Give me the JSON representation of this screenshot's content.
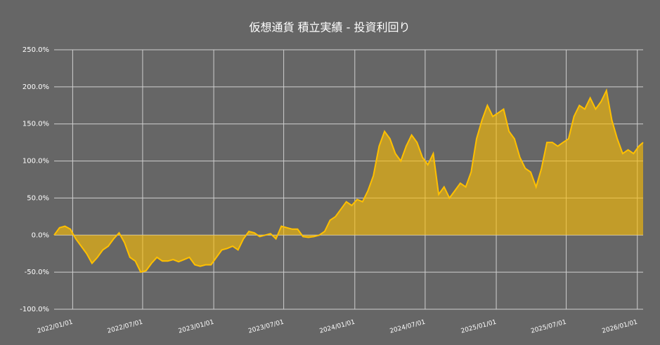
{
  "chart_data": {
    "type": "area",
    "title": "仮想通貨 積立実績 - 投資利回り",
    "color": "#ffc000",
    "grid": true,
    "x": [
      "2021/11/14",
      "2021/11/28",
      "2021/12/12",
      "2021/12/26",
      "2022/01/09",
      "2022/01/23",
      "2022/02/06",
      "2022/02/20",
      "2022/03/06",
      "2022/03/20",
      "2022/04/03",
      "2022/04/17",
      "2022/05/01",
      "2022/05/15",
      "2022/05/29",
      "2022/06/12",
      "2022/06/26",
      "2022/07/10",
      "2022/07/24",
      "2022/08/07",
      "2022/08/21",
      "2022/09/04",
      "2022/09/18",
      "2022/10/02",
      "2022/10/16",
      "2022/10/30",
      "2022/11/13",
      "2022/11/27",
      "2022/12/11",
      "2022/12/25",
      "2023/01/08",
      "2023/01/22",
      "2023/02/05",
      "2023/02/19",
      "2023/03/05",
      "2023/03/19",
      "2023/04/02",
      "2023/04/16",
      "2023/04/30",
      "2023/05/14",
      "2023/05/28",
      "2023/06/11",
      "2023/06/25",
      "2023/07/09",
      "2023/07/23",
      "2023/08/06",
      "2023/08/20",
      "2023/09/03",
      "2023/09/17",
      "2023/10/01",
      "2023/10/15",
      "2023/10/29",
      "2023/11/12",
      "2023/11/26",
      "2023/12/10",
      "2023/12/24",
      "2024/01/07",
      "2024/01/21",
      "2024/02/04",
      "2024/02/18",
      "2024/03/04",
      "2024/03/18",
      "2024/04/01",
      "2024/04/15",
      "2024/04/29",
      "2024/05/13",
      "2024/05/27",
      "2024/06/10",
      "2024/06/24",
      "2024/07/08",
      "2024/07/22",
      "2024/08/05",
      "2024/08/19",
      "2024/09/02",
      "2024/09/16",
      "2024/09/30",
      "2024/10/14",
      "2024/10/28",
      "2024/11/11",
      "2024/11/25",
      "2024/12/09",
      "2024/12/23",
      "2025/01/06",
      "2025/01/20",
      "2025/02/03",
      "2025/02/17",
      "2025/03/03",
      "2025/03/17",
      "2025/03/31",
      "2025/04/14",
      "2025/04/28",
      "2025/05/12",
      "2025/05/26",
      "2025/06/09",
      "2025/06/23",
      "2025/07/07",
      "2025/07/21",
      "2025/08/04",
      "2025/08/18",
      "2025/09/01",
      "2025/09/15",
      "2025/09/29",
      "2025/10/13",
      "2025/10/27",
      "2025/11/10",
      "2025/11/24",
      "2025/12/08",
      "2025/12/22",
      "2026/01/05",
      "2026/01/16"
    ],
    "values": [
      0,
      10,
      12,
      8,
      -5,
      -15,
      -25,
      -38,
      -30,
      -20,
      -15,
      -5,
      3,
      -10,
      -30,
      -35,
      -50,
      -48,
      -38,
      -30,
      -35,
      -35,
      -33,
      -36,
      -33,
      -30,
      -40,
      -42,
      -40,
      -40,
      -30,
      -20,
      -18,
      -15,
      -20,
      -5,
      5,
      3,
      -2,
      0,
      2,
      -5,
      12,
      10,
      8,
      8,
      -2,
      -3,
      -2,
      0,
      5,
      20,
      25,
      35,
      45,
      40,
      48,
      45,
      60,
      80,
      120,
      140,
      130,
      110,
      100,
      120,
      135,
      125,
      105,
      95,
      110,
      55,
      65,
      50,
      60,
      70,
      65,
      85,
      130,
      155,
      175,
      160,
      165,
      170,
      140,
      130,
      105,
      90,
      85,
      65,
      90,
      125,
      125,
      120,
      125,
      130,
      160,
      175,
      170,
      185,
      170,
      180,
      195,
      155,
      130,
      110,
      115,
      110,
      120,
      125
    ],
    "xlim": [
      "2021/11/14",
      "2026/01/16"
    ],
    "xticks": [
      "2022/01/01",
      "2022/07/01",
      "2023/01/01",
      "2023/07/01",
      "2024/01/01",
      "2024/07/01",
      "2025/01/01",
      "2025/07/01",
      "2026/01/01"
    ],
    "ylim": [
      -100,
      250
    ],
    "yticks": [
      {
        "value": -100,
        "label": "-100.0%"
      },
      {
        "value": -50,
        "label": "-50.0%"
      },
      {
        "value": 0,
        "label": "0.0%"
      },
      {
        "value": 50,
        "label": "50.0%"
      },
      {
        "value": 100,
        "label": "100.0%"
      },
      {
        "value": 150,
        "label": "150.0%"
      },
      {
        "value": 200,
        "label": "200.0%"
      },
      {
        "value": 250,
        "label": "250.0%"
      }
    ]
  }
}
